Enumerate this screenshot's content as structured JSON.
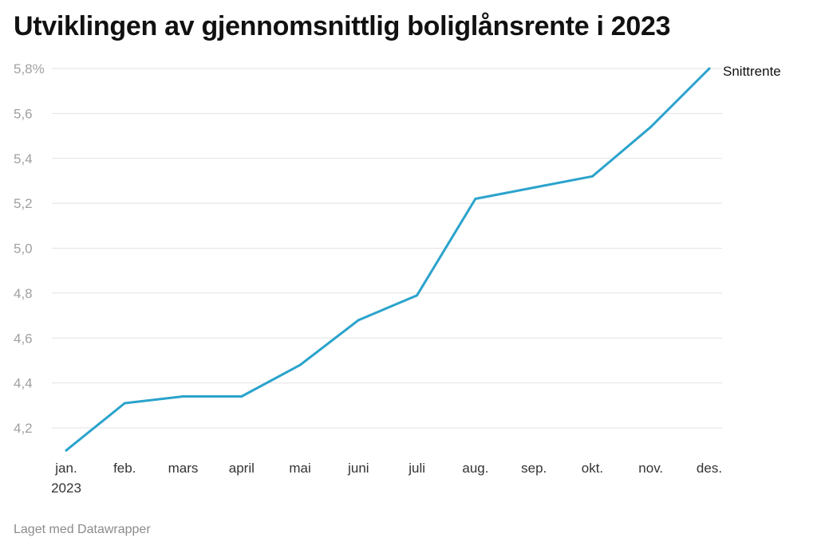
{
  "title": "Utviklingen av gjennomsnittlig boliglånsrente i 2023",
  "footer": "Laget med Datawrapper",
  "colors": {
    "line": "#2ba3cc",
    "grid": "#e2e2e2",
    "tick": "#a0a0a0"
  },
  "chart_data": {
    "type": "line",
    "title": "Utviklingen av gjennomsnittlig boliglånsrente i 2023",
    "xlabel": "",
    "ylabel": "",
    "categories": [
      "jan.",
      "feb.",
      "mars",
      "april",
      "mai",
      "juni",
      "juli",
      "aug.",
      "sep.",
      "okt.",
      "nov.",
      "des."
    ],
    "first_category_sublabel": "2023",
    "y_ticks": [
      "4,2",
      "4,4",
      "4,6",
      "4,8",
      "5,0",
      "5,2",
      "5,4",
      "5,6",
      "5,8%"
    ],
    "ylim": [
      4.1,
      5.8
    ],
    "grid": true,
    "series": [
      {
        "name": "Snittrente",
        "values": [
          4.1,
          4.31,
          4.34,
          4.34,
          4.48,
          4.68,
          4.79,
          5.22,
          5.27,
          5.32,
          5.54,
          5.8
        ]
      }
    ]
  }
}
